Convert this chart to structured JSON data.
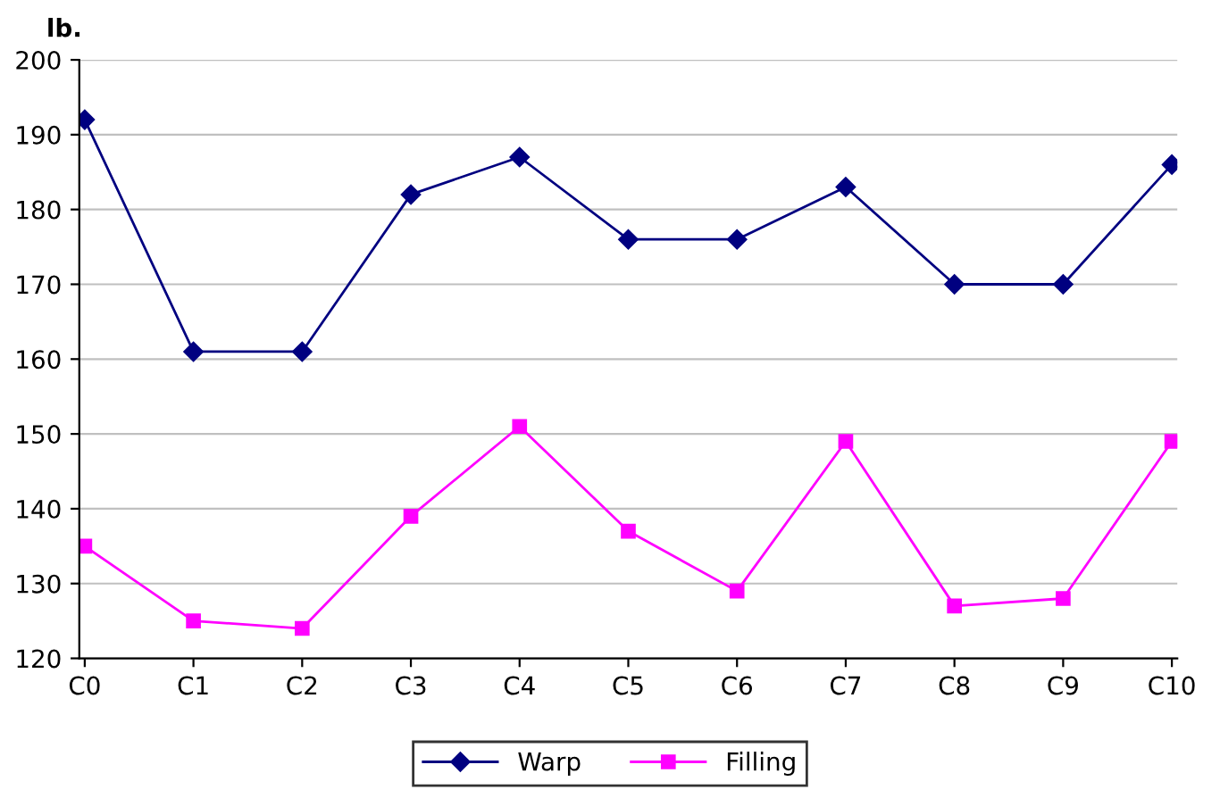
{
  "chart_data": {
    "type": "line",
    "ylabel": "lb.",
    "categories": [
      "C0",
      "C1",
      "C2",
      "C3",
      "C4",
      "C5",
      "C6",
      "C7",
      "C8",
      "C9",
      "C10"
    ],
    "series": [
      {
        "name": "Warp",
        "color": "#000080",
        "marker": "diamond",
        "values": [
          192,
          161,
          161,
          182,
          187,
          176,
          176,
          183,
          170,
          170,
          186
        ]
      },
      {
        "name": "Filling",
        "color": "#ff00ff",
        "marker": "square",
        "values": [
          135,
          125,
          124,
          139,
          151,
          137,
          129,
          149,
          127,
          128,
          149
        ]
      }
    ],
    "ylim": [
      120,
      200
    ],
    "yticks": [
      120,
      130,
      140,
      150,
      160,
      170,
      180,
      190,
      200
    ],
    "grid": "y",
    "legend": "bottom",
    "line_style": "solid"
  }
}
